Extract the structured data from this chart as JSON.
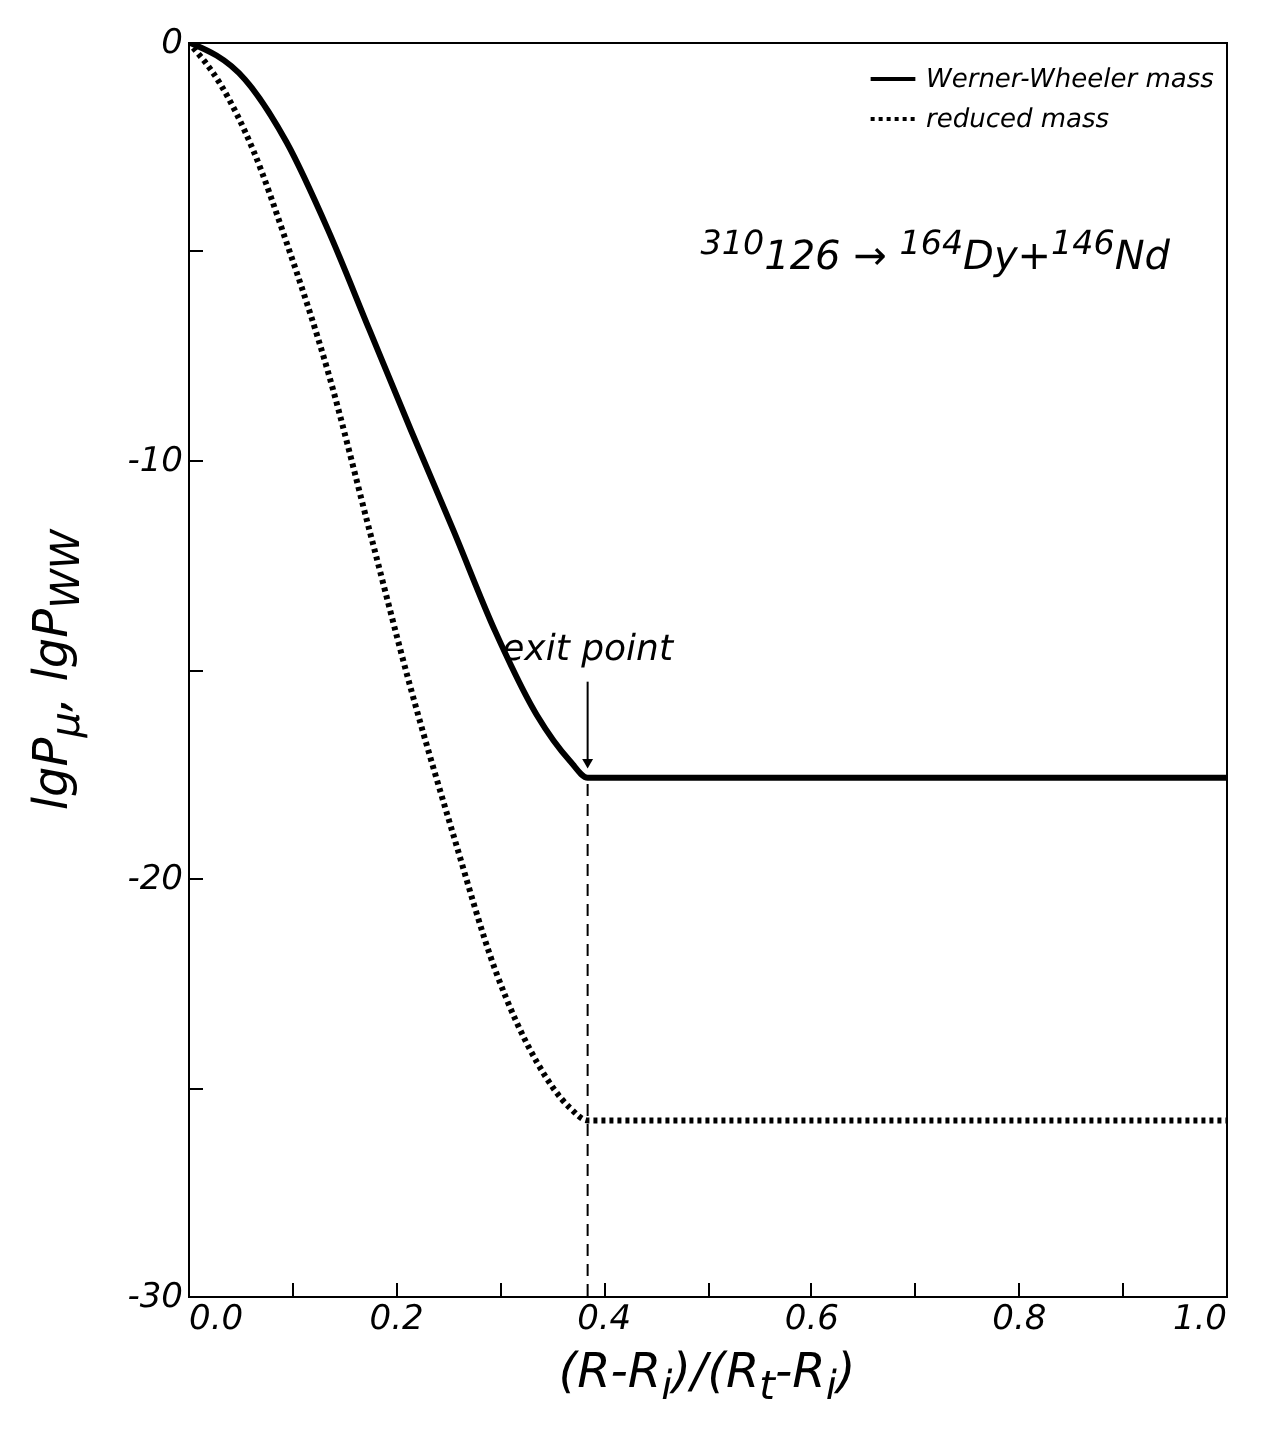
{
  "chart_data": {
    "type": "line",
    "xlabel": "(R-R$_{i}$)/(R$_{t}$-R$_{i}$)",
    "ylabel": "lgP$_{μ}$, lgP$_{WW}$",
    "xlim": [
      0,
      1
    ],
    "ylim": [
      -30,
      0
    ],
    "xticks": [
      {
        "value": 0,
        "label": "0.0"
      },
      {
        "value": 0.1,
        "label": null
      },
      0.2,
      {
        "value": 0.3,
        "label": null
      },
      0.4,
      {
        "value": 0.5,
        "label": null
      },
      0.6,
      {
        "value": 0.7,
        "label": null
      },
      0.8,
      {
        "value": 0.9,
        "label": null
      },
      {
        "value": 1,
        "label": "1.0"
      }
    ],
    "yticks": [
      -30,
      {
        "value": -25,
        "label": null
      },
      -20,
      {
        "value": -15,
        "label": null
      },
      -10,
      {
        "value": -5,
        "label": null
      },
      0
    ],
    "grid": false,
    "legend": "top right",
    "series": [
      {
        "name": "Werner-Wheeler mass",
        "color": "#000000",
        "line_style": "solid",
        "x": [
          0,
          0.055,
          0.095,
          0.135,
          0.175,
          0.215,
          0.256,
          0.296,
          0.336,
          0.368,
          0.385,
          1
        ],
        "values": [
          0,
          -0.9,
          -2.4,
          -4.5,
          -6.9,
          -9.3,
          -11.7,
          -14.1,
          -16.1,
          -17.2,
          -17.6,
          -17.6
        ]
      },
      {
        "name": "reduced mass",
        "color": "#000000",
        "line_style": "dotted",
        "x": [
          0,
          0.031,
          0.063,
          0.095,
          0.135,
          0.175,
          0.215,
          0.256,
          0.296,
          0.336,
          0.368,
          0.385,
          1
        ],
        "values": [
          0,
          -1.0,
          -2.6,
          -4.8,
          -7.9,
          -11.7,
          -15.5,
          -19.0,
          -22.2,
          -24.4,
          -25.5,
          -25.8,
          -25.8
        ]
      }
    ],
    "ref_lines": [
      {
        "axis": "x",
        "value": 0.385,
        "line_style": "dashed",
        "color": "#000000"
      }
    ],
    "annotations": [
      {
        "text": "exit point",
        "x": 0.385,
        "y": -17.6
      },
      "$^{310}$126 → $^{164}$Dy+$^{146}$Nd"
    ]
  }
}
